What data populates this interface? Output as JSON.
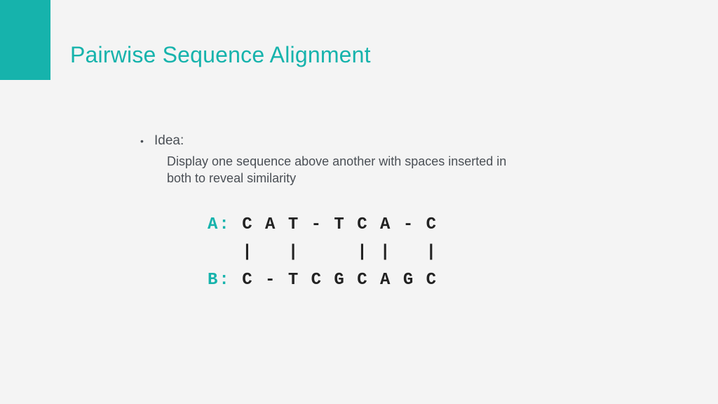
{
  "colors": {
    "accent": "#16b3ac",
    "page_bg": "#f4f4f4",
    "body_text": "#4a4f55",
    "mono_text": "#222222"
  },
  "title": "Pairwise Sequence Alignment",
  "bullet": {
    "label": "Idea:",
    "sub": "Display one sequence above another with spaces inserted in both to reveal similarity"
  },
  "alignment": {
    "label_a": "A:",
    "seq_a": " C A T - T C A - C",
    "match": "   |   |     | |   |",
    "label_b": "B:",
    "seq_b": " C - T C G C A G C",
    "font": "Courier New",
    "font_size_pt": 24,
    "label_color": "#16b3ac"
  }
}
